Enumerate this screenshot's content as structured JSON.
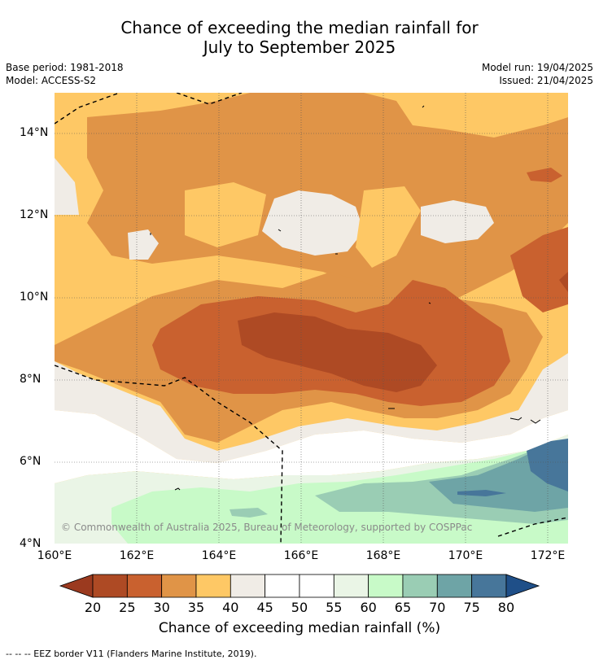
{
  "title": {
    "line1": "Chance of exceeding the median rainfall for",
    "line2": "July to September 2025"
  },
  "meta": {
    "base_period": "Base period: 1981-2018",
    "model": "Model: ACCESS-S2",
    "model_run": "Model run: 19/04/2025",
    "issued": "Issued: 21/04/2025"
  },
  "axes": {
    "y_ticks": [
      "14°N",
      "12°N",
      "10°N",
      "8°N",
      "6°N",
      "4°N"
    ],
    "x_ticks": [
      "160°E",
      "162°E",
      "164°E",
      "166°E",
      "168°E",
      "170°E",
      "172°E"
    ]
  },
  "copyright": "© Commonwealth of Australia 2025, Bureau of Meteorology, supported by COSPPac",
  "colorbar": {
    "labels": [
      "20",
      "25",
      "30",
      "35",
      "40",
      "45",
      "50",
      "55",
      "60",
      "65",
      "70",
      "75",
      "80"
    ],
    "colors": [
      "#ae4a24",
      "#c9612f",
      "#e09447",
      "#fec865",
      "#f0ece6",
      "#ffffff",
      "#ffffff",
      "#eaf5e6",
      "#c8fac8",
      "#9acdb4",
      "#6ea4a6",
      "#47769a"
    ],
    "low_extend_color": "#9b3a1f",
    "high_extend_color": "#1f4f88",
    "title": "Chance of exceeding median rainfall (%)"
  },
  "footnote": "--  --  -- EEZ border V11 (Flanders Marine Institute, 2019)."
}
